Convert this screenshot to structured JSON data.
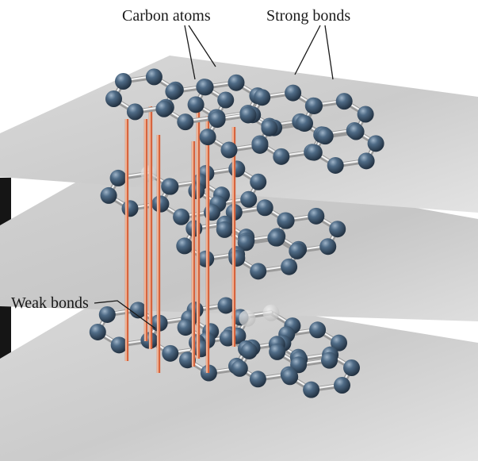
{
  "labels": {
    "carbon_atoms": "Carbon atoms",
    "strong_bonds": "Strong bonds",
    "weak_bonds": "Weak bonds"
  },
  "colors": {
    "plane": "#cfcfcf",
    "atom": "#3a5168",
    "strong_bond": "#9a9a9a",
    "weak_bond": "#d6643e",
    "photo_strip": "#151515"
  },
  "layers": [
    {
      "name": "top",
      "atoms_shown": 21
    },
    {
      "name": "middle",
      "atoms_shown": 19
    },
    {
      "name": "bottom",
      "atoms_shown": 20
    }
  ]
}
